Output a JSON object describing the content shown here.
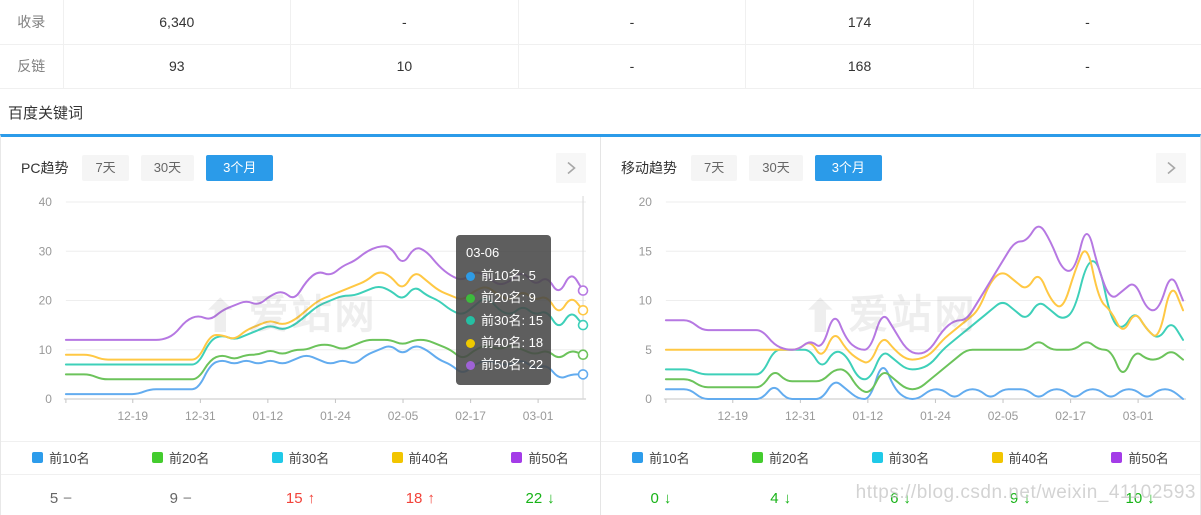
{
  "table": {
    "rows": [
      {
        "label": "收录",
        "values": [
          "6,340",
          "-",
          "-",
          "174",
          "-"
        ]
      },
      {
        "label": "反链",
        "values": [
          "93",
          "10",
          "-",
          "168",
          "-"
        ]
      }
    ]
  },
  "section": {
    "title": "百度关键词"
  },
  "colors": {
    "accent": "#2B9BE9",
    "legend": [
      "#2D9CEB",
      "#44CC2E",
      "#1FC9E8",
      "#F2C500",
      "#A43CE8"
    ],
    "lines": [
      "#63ACEF",
      "#6CC35B",
      "#3ED0B9",
      "#FFC844",
      "#B678E2"
    ],
    "tooltip_dots": [
      "#2E9BE6",
      "#3DBB3D",
      "#25BFA3",
      "#EEC900",
      "#9F62D6"
    ],
    "up": "#f2433a",
    "down": "#17b317",
    "flat": "#aaaaaa"
  },
  "panels": [
    {
      "title": "PC趋势",
      "tabs": [
        {
          "label": "7天",
          "active": false
        },
        {
          "label": "30天",
          "active": false
        },
        {
          "label": "3个月",
          "active": true
        }
      ],
      "legend": [
        {
          "label": "前10名"
        },
        {
          "label": "前20名"
        },
        {
          "label": "前30名"
        },
        {
          "label": "前40名"
        },
        {
          "label": "前50名"
        }
      ],
      "summary": [
        {
          "value": "5",
          "trend": "flat"
        },
        {
          "value": "9",
          "trend": "flat"
        },
        {
          "value": "15",
          "trend": "up"
        },
        {
          "value": "18",
          "trend": "up"
        },
        {
          "value": "22",
          "trend": "down"
        }
      ]
    },
    {
      "title": "移动趋势",
      "tabs": [
        {
          "label": "7天",
          "active": false
        },
        {
          "label": "30天",
          "active": false
        },
        {
          "label": "3个月",
          "active": true
        }
      ],
      "legend": [
        {
          "label": "前10名"
        },
        {
          "label": "前20名"
        },
        {
          "label": "前30名"
        },
        {
          "label": "前40名"
        },
        {
          "label": "前50名"
        }
      ],
      "summary": [
        {
          "value": "0",
          "trend": "down"
        },
        {
          "value": "4",
          "trend": "down"
        },
        {
          "value": "6",
          "trend": "down"
        },
        {
          "value": "9",
          "trend": "down"
        },
        {
          "value": "10",
          "trend": "down"
        }
      ]
    }
  ],
  "tooltip": {
    "title": "03-06",
    "items": [
      {
        "label": "前10名",
        "value": "5"
      },
      {
        "label": "前20名",
        "value": "9"
      },
      {
        "label": "前30名",
        "value": "15"
      },
      {
        "label": "前40名",
        "value": "18"
      },
      {
        "label": "前50名",
        "value": "22"
      }
    ]
  },
  "watermark": {
    "logo_icon": "⬆",
    "logo_text": "爱站网",
    "url_text": "https://blog.csdn.net/weixin_41102593"
  },
  "chart_data": [
    {
      "type": "line",
      "title": "PC趋势",
      "x_ticks": [
        "12-19",
        "12-31",
        "01-12",
        "01-24",
        "02-05",
        "02-17",
        "03-01"
      ],
      "ylim": [
        0,
        40
      ],
      "y_ticks": [
        0,
        10,
        20,
        30,
        40
      ],
      "grid": true,
      "legend_position": "bottom",
      "end_markers": true,
      "pointer_line": true,
      "series": [
        {
          "name": "前10名",
          "color": "#63ACEF",
          "values": [
            1,
            1,
            1,
            1,
            1,
            1,
            1,
            2,
            2,
            2,
            2,
            2,
            7,
            8,
            7,
            8,
            7,
            8,
            7,
            8,
            9,
            8,
            7,
            8,
            7,
            9,
            10,
            11,
            9,
            11,
            10,
            8,
            7,
            5,
            7,
            8,
            7,
            7,
            8,
            6,
            7,
            4,
            5,
            5
          ]
        },
        {
          "name": "前20名",
          "color": "#6CC35B",
          "values": [
            5,
            5,
            5,
            4,
            4,
            4,
            4,
            4,
            4,
            4,
            4,
            4,
            8,
            9,
            8,
            9,
            9,
            10,
            9,
            10,
            10,
            11,
            11,
            10,
            11,
            12,
            12,
            12,
            11,
            12,
            12,
            11,
            10,
            8,
            10,
            11,
            10,
            11,
            10,
            9,
            10,
            8,
            10,
            9
          ]
        },
        {
          "name": "前30名",
          "color": "#3ED0B9",
          "values": [
            7,
            7,
            7,
            7,
            7,
            7,
            7,
            7,
            7,
            7,
            7,
            7,
            12,
            13,
            12,
            13,
            14,
            15,
            14,
            15,
            17,
            19,
            20,
            21,
            21,
            22,
            23,
            22,
            20,
            23,
            21,
            20,
            18,
            17,
            19,
            21,
            18,
            17,
            19,
            17,
            18,
            14,
            18,
            15
          ]
        },
        {
          "name": "前40名",
          "color": "#FFC844",
          "values": [
            9,
            9,
            9,
            8,
            8,
            8,
            8,
            8,
            8,
            8,
            8,
            8,
            13,
            13,
            12,
            14,
            15,
            16,
            15,
            16,
            18,
            20,
            21,
            22,
            23,
            24,
            26,
            25,
            22,
            26,
            24,
            22,
            21,
            20,
            22,
            23,
            21,
            20,
            22,
            20,
            21,
            17,
            21,
            18
          ]
        },
        {
          "name": "前50名",
          "color": "#B678E2",
          "values": [
            12,
            12,
            12,
            12,
            12,
            12,
            12,
            12,
            12,
            13,
            16,
            17,
            16,
            18,
            19,
            20,
            19,
            21,
            22,
            20,
            24,
            26,
            25,
            27,
            28,
            30,
            31,
            31,
            27,
            31,
            30,
            27,
            25,
            24,
            26,
            25,
            23,
            24,
            26,
            23,
            25,
            21,
            26,
            22
          ]
        }
      ]
    },
    {
      "type": "line",
      "title": "移动趋势",
      "x_ticks": [
        "12-19",
        "12-31",
        "01-12",
        "01-24",
        "02-05",
        "02-17",
        "03-01"
      ],
      "ylim": [
        0,
        20
      ],
      "y_ticks": [
        0,
        5,
        10,
        15,
        20
      ],
      "grid": true,
      "legend_position": "bottom",
      "end_markers": false,
      "pointer_line": false,
      "series": [
        {
          "name": "前10名",
          "color": "#63ACEF",
          "values": [
            1,
            1,
            1,
            0,
            0,
            0,
            0,
            0,
            0,
            1.5,
            0,
            0,
            0,
            0,
            2,
            1,
            0,
            0,
            4,
            1,
            0,
            0,
            1,
            1,
            0,
            1,
            1,
            0,
            1,
            1,
            1,
            0,
            1,
            1,
            0,
            1,
            1,
            0,
            1,
            1,
            0,
            1,
            1,
            0
          ]
        },
        {
          "name": "前20名",
          "color": "#6CC35B",
          "values": [
            2,
            2,
            2,
            1.2,
            1.2,
            1.2,
            1.2,
            1.2,
            1.2,
            3,
            1.8,
            1.8,
            1.8,
            1.8,
            3,
            3,
            1,
            0.5,
            3,
            2,
            1,
            1,
            2,
            3,
            4,
            5,
            5,
            5,
            5,
            5,
            5,
            6,
            5,
            5,
            5,
            6,
            5,
            5,
            2,
            5,
            4,
            4,
            5,
            4
          ]
        },
        {
          "name": "前30名",
          "color": "#3ED0B9",
          "values": [
            3,
            3,
            3,
            2.5,
            2.5,
            2.5,
            2.5,
            2.5,
            2.5,
            5,
            5,
            5,
            5,
            3,
            5,
            4.5,
            2,
            2,
            5,
            4,
            3,
            3,
            3.5,
            5,
            6,
            7,
            8,
            9,
            10,
            9,
            8,
            10,
            9,
            8,
            9,
            14,
            14,
            8,
            7,
            9,
            7,
            6,
            8,
            6
          ]
        },
        {
          "name": "前40名",
          "color": "#FFC844",
          "values": [
            5,
            5,
            5,
            5,
            5,
            5,
            5,
            5,
            5,
            5,
            5,
            5,
            6,
            4,
            7,
            5,
            4,
            3.5,
            6.5,
            5,
            4,
            4,
            4.5,
            6,
            7,
            8,
            9,
            12,
            13,
            12,
            11,
            13,
            10,
            9,
            13,
            16,
            10,
            9,
            6.5,
            9,
            7,
            6,
            12,
            9
          ]
        },
        {
          "name": "前50名",
          "color": "#B678E2",
          "values": [
            8,
            8,
            8,
            7,
            7,
            7,
            7,
            7,
            7,
            5.5,
            5,
            5,
            6,
            5,
            9,
            6,
            5,
            5,
            9,
            7,
            5,
            4.5,
            5,
            7,
            8,
            8,
            10,
            12,
            14,
            16,
            16,
            18,
            16,
            13,
            13,
            18,
            13,
            10,
            11,
            12,
            9,
            9,
            13,
            10
          ]
        }
      ]
    }
  ]
}
